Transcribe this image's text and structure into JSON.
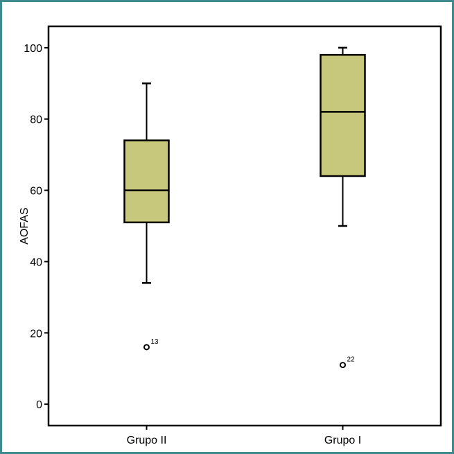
{
  "chart_data": {
    "type": "boxplot",
    "ylabel": "AOFAS",
    "xlabel": "",
    "ylim": [
      -6,
      106
    ],
    "yticks": [
      0,
      20,
      40,
      60,
      80,
      100
    ],
    "grid": false,
    "categories": [
      "Grupo II",
      "Grupo I"
    ],
    "boxes": [
      {
        "category": "Grupo II",
        "min": 34,
        "q1": 51,
        "median": 60,
        "q3": 74,
        "max": 90,
        "outliers": [
          {
            "value": 16,
            "label": "13"
          }
        ]
      },
      {
        "category": "Grupo I",
        "min": 50,
        "q1": 64,
        "median": 82,
        "q3": 98,
        "max": 100,
        "outliers": [
          {
            "value": 11,
            "label": "22"
          }
        ]
      }
    ],
    "colors": {
      "box_fill": "#c8c87d",
      "line": "#000000",
      "frame": "#3f8a8c"
    }
  }
}
